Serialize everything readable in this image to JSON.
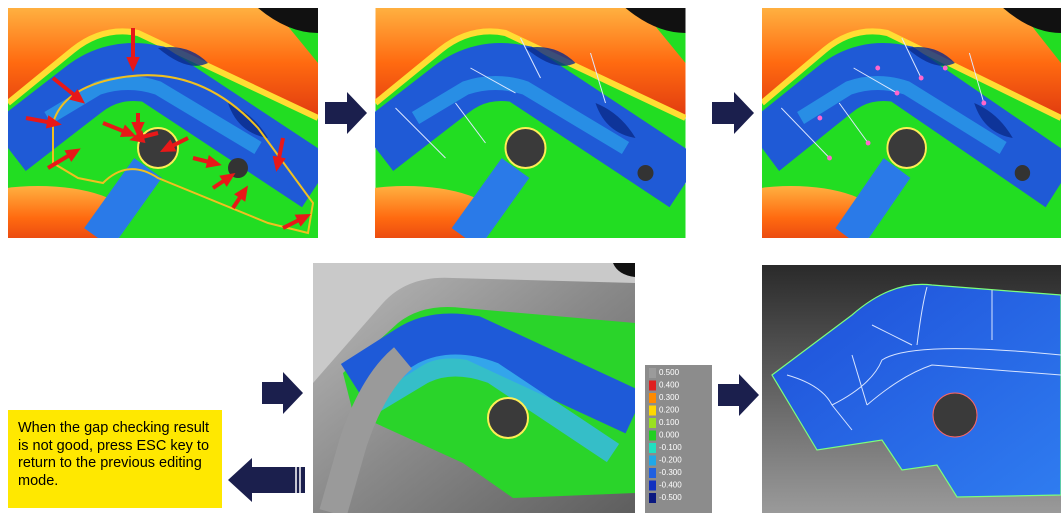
{
  "note": {
    "text": "When the gap checking result is not good, press ESC key to return to the previous editing mode."
  },
  "legend": {
    "labels": [
      "0.500",
      "0.400",
      "0.300",
      "0.200",
      "0.100",
      "0.000",
      "-0.100",
      "-0.200",
      "-0.300",
      "-0.400",
      "-0.500"
    ]
  }
}
